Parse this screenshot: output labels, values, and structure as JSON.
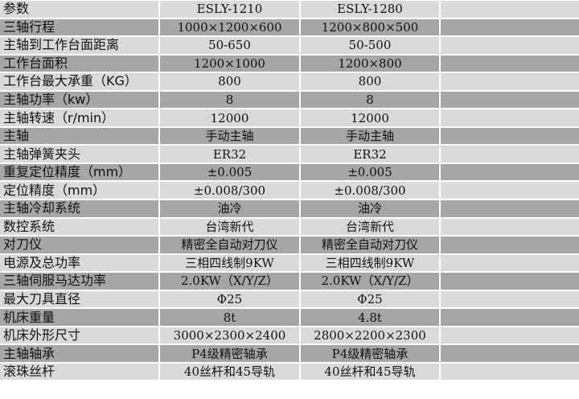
{
  "colors": {
    "light_row": "#d9d9d9",
    "dark_row": "#a6a6a6"
  },
  "rows": [
    {
      "label": "参数",
      "a": "ESLY-1210",
      "b": "ESLY-1280"
    },
    {
      "label": "三轴行程",
      "a": "1000×1200×600",
      "b": "1200×800×500"
    },
    {
      "label": "主轴到工作台面距离",
      "a": "50-650",
      "b": "50-500"
    },
    {
      "label": "工作台面积",
      "a": "1200×1000",
      "b": "1200×800"
    },
    {
      "label": "工作台最大承重（KG）",
      "a": "800",
      "b": "800"
    },
    {
      "label": "主轴功率（kw）",
      "a": "8",
      "b": "8"
    },
    {
      "label": "主轴转速（r/min）",
      "a": "12000",
      "b": "12000"
    },
    {
      "label": "主轴",
      "a": "手动主轴",
      "b": "手动主轴"
    },
    {
      "label": "主轴弹簧夹头",
      "a": "ER32",
      "b": "ER32"
    },
    {
      "label": "重复定位精度（mm）",
      "a": "±0.005",
      "b": "±0.005"
    },
    {
      "label": "定位精度（mm）",
      "a": "±0.008/300",
      "b": "±0.008/300"
    },
    {
      "label": "主轴冷却系统",
      "a": "油冷",
      "b": "油冷"
    },
    {
      "label": "数控系统",
      "a": "台湾新代",
      "b": "台湾新代"
    },
    {
      "label": "对刀仪",
      "a": "精密全自动对刀仪",
      "b": "精密全自动对刀仪"
    },
    {
      "label": "电源及总功率",
      "a": "三相四线制9KW",
      "b": "三相四线制9KW"
    },
    {
      "label": "三轴伺服马达功率",
      "a": "2.0KW（X/Y/Z）",
      "b": "2.0KW（X/Y/Z）"
    },
    {
      "label": "最大刀具直径",
      "a": "Φ25",
      "b": "Φ25"
    },
    {
      "label": "机床重量",
      "a": "8t",
      "b": "4.8t"
    },
    {
      "label": "机床外形尺寸",
      "a": "3000×2300×2400",
      "b": "2800×2200×2300"
    },
    {
      "label": "主轴轴承",
      "a": "P4级精密轴承",
      "b": "P4级精密轴承"
    },
    {
      "label": "滚珠丝杆",
      "a": "40丝杆和45导轨",
      "b": "40丝杆和45导轨"
    }
  ]
}
